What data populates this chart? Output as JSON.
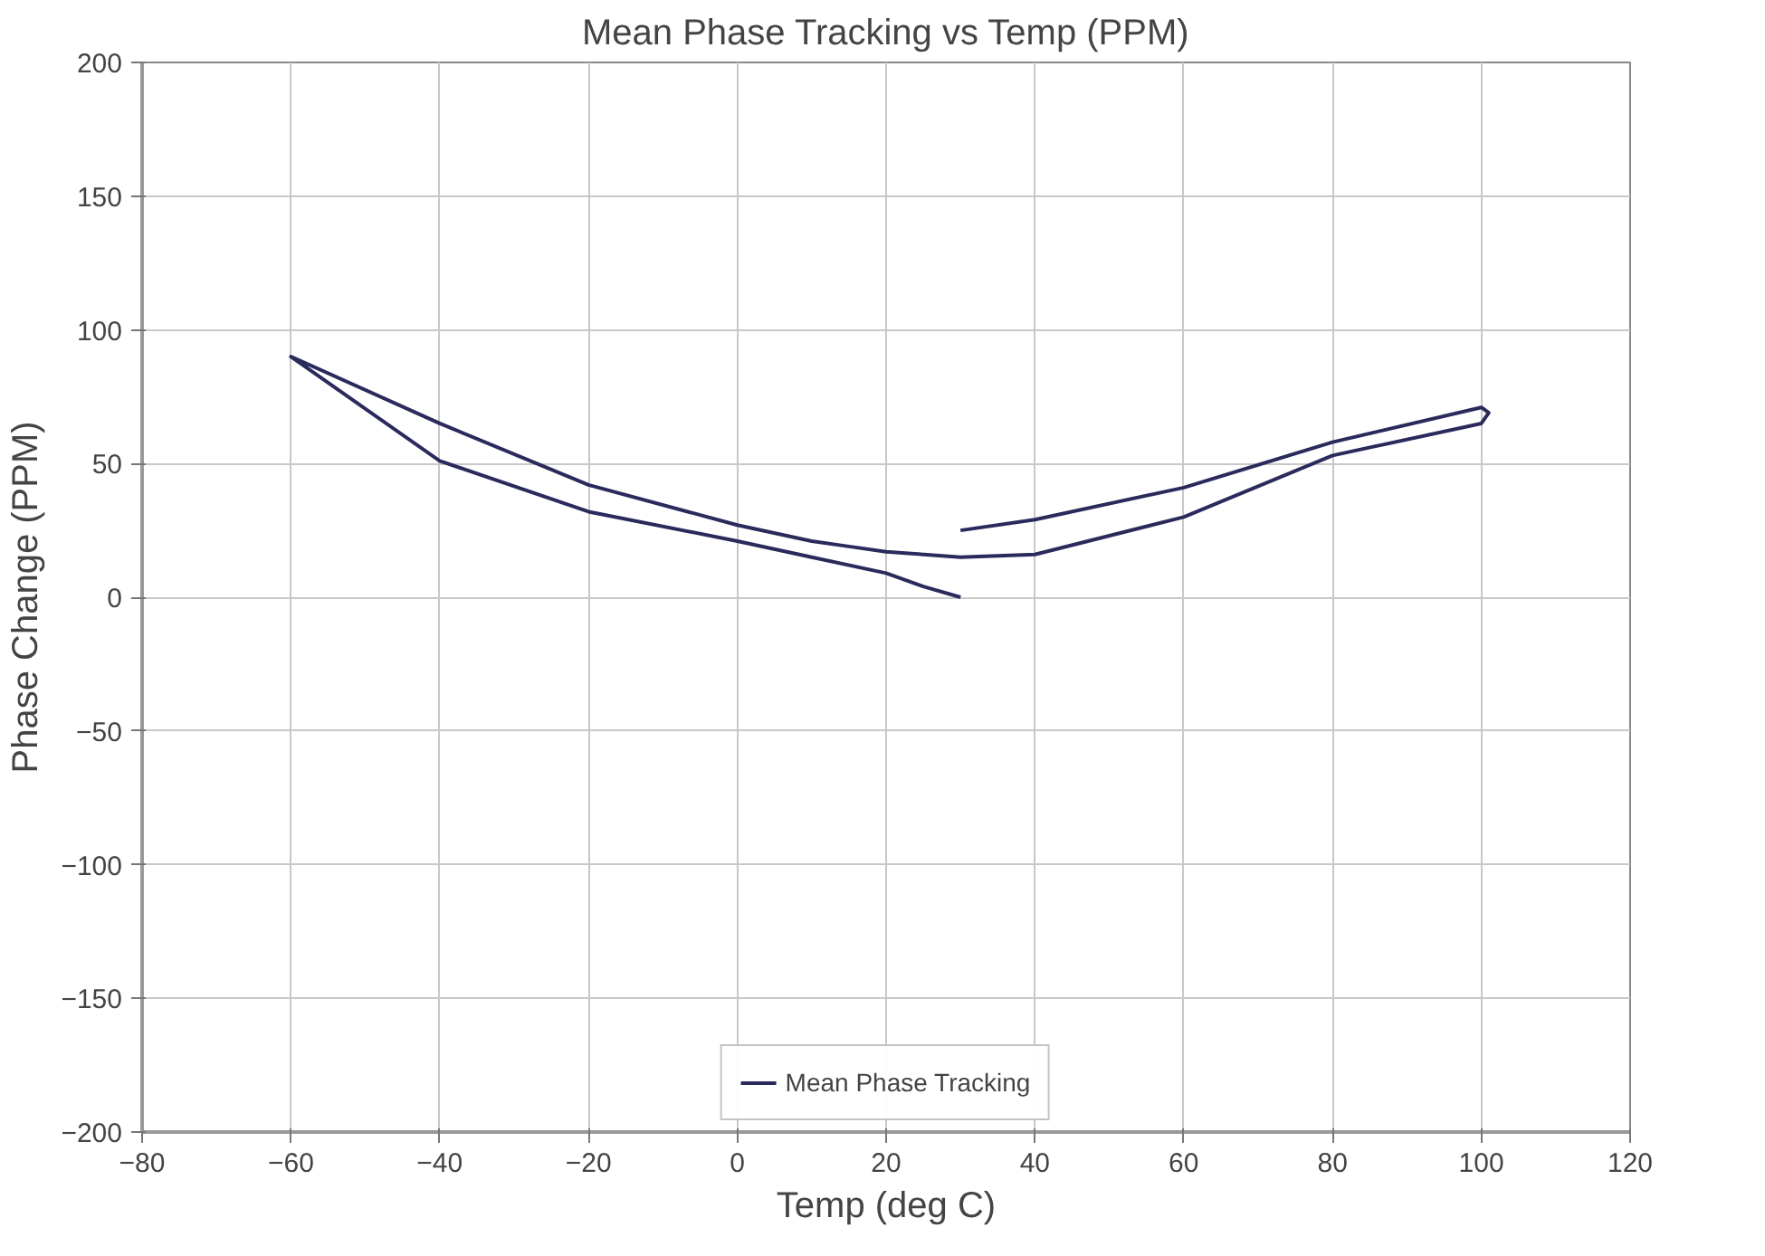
{
  "chart_data": {
    "type": "line",
    "title": "Mean Phase Tracking vs Temp (PPM)",
    "xlabel": "Temp (deg C)",
    "ylabel": "Phase Change (PPM)",
    "x": [
      30,
      25,
      20,
      10,
      0,
      -20,
      -40,
      -60,
      -40,
      -20,
      0,
      10,
      15,
      20,
      25,
      30,
      40,
      60,
      80,
      100,
      101,
      100,
      80,
      60,
      40,
      30
    ],
    "series": [
      {
        "name": "Mean Phase Tracking",
        "color": "#2a2a5c",
        "values": [
          0,
          4,
          9,
          15,
          21,
          32,
          51,
          90,
          65,
          42,
          27,
          21,
          19,
          17,
          16,
          15,
          16,
          30,
          53,
          65,
          69,
          71,
          58,
          41,
          29,
          25
        ]
      }
    ],
    "xlim": [
      -80,
      120
    ],
    "xticks": [
      -80,
      -60,
      -40,
      -20,
      0,
      20,
      40,
      60,
      80,
      100,
      120
    ],
    "ylim": [
      -200,
      200
    ],
    "yticks": [
      -200,
      -150,
      -100,
      -50,
      0,
      50,
      100,
      150,
      200
    ],
    "grid": true,
    "legend": "bottom",
    "marker": "none",
    "line_style": "solid"
  }
}
